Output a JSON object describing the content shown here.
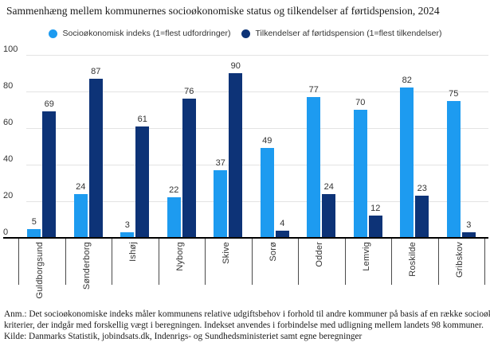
{
  "title": "Sammenhæng mellem kommunernes socioøkonomiske status og tilkendelser af førtidspension, 2024",
  "colors": {
    "series1": "#1d9bf0",
    "series2": "#0d3377",
    "gridline": "#e3e3e3",
    "axis": "#000000",
    "label_text": "#333333"
  },
  "chart_data": {
    "type": "bar",
    "title": "Sammenhæng mellem kommunernes socioøkonomiske status og tilkendelser af førtidspension, 2024",
    "categories": [
      "Guldborgsund",
      "Sønderborg",
      "Ishøj",
      "Nyborg",
      "Skive",
      "Sorø",
      "Odder",
      "Lemvig",
      "Roskilde",
      "Gribskov"
    ],
    "series": [
      {
        "name": "Socioøkonomisk indeks (1=flest udfordringer)",
        "color": "#1d9bf0",
        "values": [
          5,
          24,
          3,
          22,
          37,
          49,
          77,
          70,
          82,
          75
        ]
      },
      {
        "name": "Tilkendelser af førtidspension (1=flest tilkendelser)",
        "color": "#0d3377",
        "values": [
          69,
          87,
          61,
          76,
          90,
          4,
          24,
          12,
          23,
          3
        ]
      }
    ],
    "xlabel": "",
    "ylabel": "",
    "ylim": [
      0,
      100
    ],
    "yticks": [
      0,
      20,
      40,
      60,
      80,
      100
    ],
    "grid": true,
    "legend_position": "top",
    "value_labels": true,
    "xtick_rotation": 90
  },
  "footnotes": {
    "line1": "Anm.: Det socioøkonomiske indeks måler kommunens relative udgiftsbehov i forhold til andre kommuner på basis af en række socioøkonomiske",
    "line2": "kriterier, der indgår med forskellig vægt i beregningen. Indekset anvendes i forbindelse med udligning mellem landets 98 kommuner.",
    "line3": "Kilde: Danmarks Statistik, jobindsats.dk, Indenrigs- og Sundhedsministeriet samt egne beregninger"
  }
}
